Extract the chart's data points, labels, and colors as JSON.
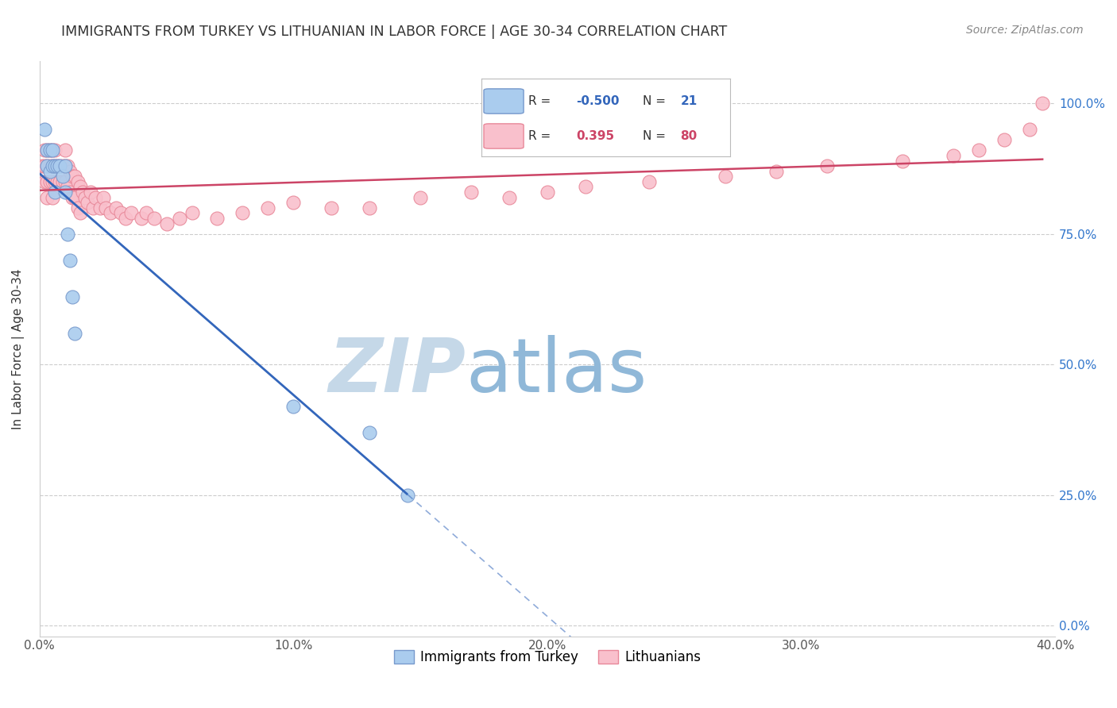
{
  "title": "IMMIGRANTS FROM TURKEY VS LITHUANIAN IN LABOR FORCE | AGE 30-34 CORRELATION CHART",
  "source": "Source: ZipAtlas.com",
  "ylabel": "In Labor Force | Age 30-34",
  "xlim": [
    0.0,
    0.4
  ],
  "ylim": [
    -0.02,
    1.08
  ],
  "yticks": [
    0.0,
    0.25,
    0.5,
    0.75,
    1.0
  ],
  "xticks": [
    0.0,
    0.1,
    0.2,
    0.3,
    0.4
  ],
  "xticklabels": [
    "0.0%",
    "10.0%",
    "20.0%",
    "30.0%",
    "40.0%"
  ],
  "yticklabels_right": [
    "0.0%",
    "25.0%",
    "50.0%",
    "75.0%",
    "100.0%"
  ],
  "grid_color": "#cccccc",
  "background_color": "#ffffff",
  "title_color": "#333333",
  "turkey_color": "#aaccee",
  "turkey_edge_color": "#7799cc",
  "lithuanian_color": "#f9c0cc",
  "lithuanian_edge_color": "#e88899",
  "turkey_line_color": "#3366bb",
  "lithuanian_line_color": "#cc4466",
  "turkey_R": -0.5,
  "turkey_N": 21,
  "lithuanian_R": 0.395,
  "lithuanian_N": 80,
  "watermark_zip": "ZIP",
  "watermark_atlas": "atlas",
  "watermark_color_zip": "#c8d8e8",
  "watermark_color_atlas": "#8ab0d0",
  "turkey_x": [
    0.002,
    0.003,
    0.003,
    0.004,
    0.004,
    0.005,
    0.005,
    0.006,
    0.006,
    0.007,
    0.008,
    0.009,
    0.01,
    0.01,
    0.011,
    0.012,
    0.013,
    0.014,
    0.1,
    0.13,
    0.145
  ],
  "turkey_y": [
    0.95,
    0.91,
    0.88,
    0.91,
    0.87,
    0.91,
    0.88,
    0.88,
    0.83,
    0.88,
    0.88,
    0.86,
    0.88,
    0.83,
    0.75,
    0.7,
    0.63,
    0.56,
    0.42,
    0.37,
    0.25
  ],
  "lithuanian_x": [
    0.001,
    0.002,
    0.002,
    0.002,
    0.003,
    0.003,
    0.003,
    0.003,
    0.004,
    0.004,
    0.004,
    0.005,
    0.005,
    0.005,
    0.005,
    0.006,
    0.006,
    0.006,
    0.007,
    0.007,
    0.008,
    0.008,
    0.009,
    0.009,
    0.01,
    0.01,
    0.01,
    0.011,
    0.011,
    0.012,
    0.012,
    0.013,
    0.013,
    0.014,
    0.014,
    0.015,
    0.015,
    0.016,
    0.016,
    0.017,
    0.018,
    0.019,
    0.02,
    0.021,
    0.022,
    0.024,
    0.025,
    0.026,
    0.028,
    0.03,
    0.032,
    0.034,
    0.036,
    0.04,
    0.042,
    0.045,
    0.05,
    0.055,
    0.06,
    0.07,
    0.08,
    0.09,
    0.1,
    0.115,
    0.13,
    0.15,
    0.17,
    0.185,
    0.2,
    0.215,
    0.24,
    0.27,
    0.29,
    0.31,
    0.34,
    0.36,
    0.37,
    0.38,
    0.39,
    0.395
  ],
  "lithuanian_y": [
    0.88,
    0.91,
    0.88,
    0.85,
    0.91,
    0.88,
    0.85,
    0.82,
    0.91,
    0.88,
    0.85,
    0.91,
    0.88,
    0.85,
    0.82,
    0.91,
    0.88,
    0.85,
    0.88,
    0.85,
    0.88,
    0.85,
    0.88,
    0.85,
    0.91,
    0.88,
    0.85,
    0.88,
    0.84,
    0.87,
    0.83,
    0.86,
    0.82,
    0.86,
    0.82,
    0.85,
    0.8,
    0.84,
    0.79,
    0.83,
    0.82,
    0.81,
    0.83,
    0.8,
    0.82,
    0.8,
    0.82,
    0.8,
    0.79,
    0.8,
    0.79,
    0.78,
    0.79,
    0.78,
    0.79,
    0.78,
    0.77,
    0.78,
    0.79,
    0.78,
    0.79,
    0.8,
    0.81,
    0.8,
    0.8,
    0.82,
    0.83,
    0.82,
    0.83,
    0.84,
    0.85,
    0.86,
    0.87,
    0.88,
    0.89,
    0.9,
    0.91,
    0.93,
    0.95,
    1.0
  ]
}
